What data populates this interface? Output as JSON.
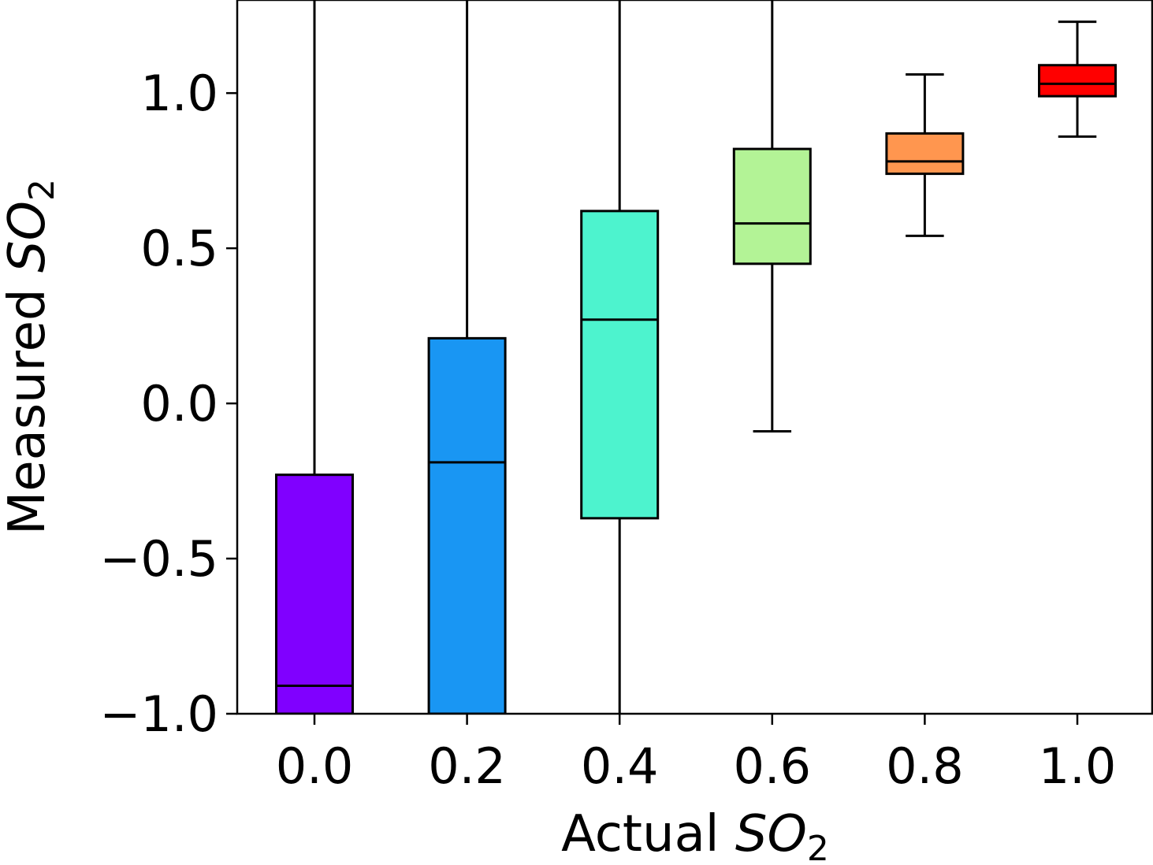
{
  "chart_data": {
    "type": "box",
    "title": "",
    "xlabel": "Actual SO2",
    "ylabel": "Measured SO2",
    "xlabel_parts": {
      "text": "Actual ",
      "var": "SO",
      "sub": "2"
    },
    "ylabel_parts": {
      "text": "Measured ",
      "var": "SO",
      "sub": "2"
    },
    "ylim": [
      -1.0,
      1.3
    ],
    "yticks": [
      -1.0,
      -0.5,
      0.0,
      0.5,
      1.0
    ],
    "ytick_labels": [
      "−1.0",
      "−0.5",
      "0.0",
      "0.5",
      "1.0"
    ],
    "categories": [
      "0.0",
      "0.2",
      "0.4",
      "0.6",
      "0.8",
      "1.0"
    ],
    "grid": false,
    "legend": "none",
    "boxes": [
      {
        "category": "0.0",
        "whisker_low": -1.0,
        "q1": -1.0,
        "median": -0.91,
        "q3": -0.23,
        "whisker_high": 1.3,
        "color": "#8000ff"
      },
      {
        "category": "0.2",
        "whisker_low": -1.0,
        "q1": -1.0,
        "median": -0.19,
        "q3": 0.21,
        "whisker_high": 1.3,
        "color": "#1996f3"
      },
      {
        "category": "0.4",
        "whisker_low": -1.0,
        "q1": -0.37,
        "median": 0.27,
        "q3": 0.62,
        "whisker_high": 1.3,
        "color": "#4df3ce"
      },
      {
        "category": "0.6",
        "whisker_low": -0.09,
        "q1": 0.45,
        "median": 0.58,
        "q3": 0.82,
        "whisker_high": 1.3,
        "color": "#b3f396"
      },
      {
        "category": "0.8",
        "whisker_low": 0.54,
        "q1": 0.74,
        "median": 0.78,
        "q3": 0.87,
        "whisker_high": 1.06,
        "color": "#ff964f"
      },
      {
        "category": "1.0",
        "whisker_low": 0.86,
        "q1": 0.99,
        "median": 1.03,
        "q3": 1.09,
        "whisker_high": 1.23,
        "color": "#ff0000"
      }
    ]
  }
}
